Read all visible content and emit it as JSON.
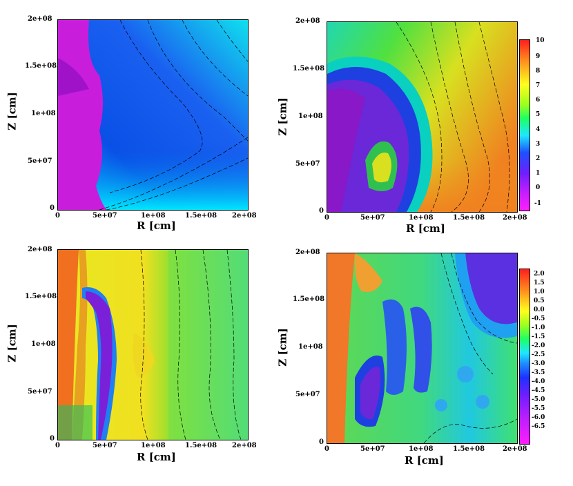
{
  "figure": {
    "panels": [
      {
        "id": "top-left",
        "ylabel": "Z [cm]",
        "xlabel": "R [cm]",
        "xticks": [
          "0",
          "5e+07",
          "1e+08",
          "1.5e+08",
          "2e+08"
        ],
        "yticks": [
          "0",
          "5e+07",
          "1e+08",
          "1.5e+08",
          "2e+08"
        ],
        "colorbar": null
      },
      {
        "id": "top-right",
        "ylabel": "Z [cm]",
        "xlabel": "R [cm]",
        "xticks": [
          "0",
          "5e+07",
          "1e+08",
          "1.5e+08",
          "2e+08"
        ],
        "yticks": [
          "0",
          "5e+07",
          "1e+08",
          "1.5e+08",
          "2e+08"
        ],
        "colorbar": {
          "labels": [
            "10",
            "9",
            "8",
            "7",
            "6",
            "5",
            "4",
            "3",
            "2",
            "1",
            "0",
            "-1"
          ]
        }
      },
      {
        "id": "bottom-left",
        "ylabel": "Z [cm]",
        "xlabel": "R [cm]",
        "xticks": [
          "0",
          "5e+07",
          "1e+08",
          "1.5e+08",
          "2e+08"
        ],
        "yticks": [
          "0",
          "5e+07",
          "1e+08",
          "1.5e+08",
          "2e+08"
        ],
        "colorbar": null
      },
      {
        "id": "bottom-right",
        "ylabel": "Z [cm]",
        "xlabel": "R [cm]",
        "xticks": [
          "0",
          "5e+07",
          "1e+08",
          "1.5e+08",
          "2e+08"
        ],
        "yticks": [
          "0",
          "5e+07",
          "1e+08",
          "1.5e+08",
          "2e+08"
        ],
        "colorbar": {
          "labels": [
            "2.0",
            "1.5",
            "1.0",
            "0.5",
            "0.0",
            "-0.5",
            "-1.0",
            "-1.5",
            "-2.0",
            "-2.5",
            "-3.0",
            "-3.5",
            "-4.0",
            "-4.5",
            "-5.0",
            "-5.5",
            "-6.0",
            "-6.5"
          ]
        }
      }
    ]
  },
  "chart_data": [
    {
      "type": "heatmap",
      "xlabel": "R [cm]",
      "ylabel": "Z [cm]",
      "xlim": [
        0,
        200000000
      ],
      "ylim": [
        0,
        200000000
      ],
      "x_ticks": [
        "0",
        "5e+07",
        "1e+08",
        "1.5e+08",
        "2e+08"
      ],
      "y_ticks": [
        "0",
        "5e+07",
        "1e+08",
        "1.5e+08",
        "2e+08"
      ],
      "colorscale": "magenta-blue-cyan-green-yellow-red",
      "contours": true
    },
    {
      "type": "heatmap",
      "xlabel": "R [cm]",
      "ylabel": "Z [cm]",
      "xlim": [
        0,
        200000000
      ],
      "ylim": [
        0,
        200000000
      ],
      "x_ticks": [
        "0",
        "5e+07",
        "1e+08",
        "1.5e+08",
        "2e+08"
      ],
      "y_ticks": [
        "0",
        "5e+07",
        "1e+08",
        "1.5e+08",
        "2e+08"
      ],
      "colorbar_range": [
        -1,
        10
      ],
      "colorbar_ticks": [
        10,
        9,
        8,
        7,
        6,
        5,
        4,
        3,
        2,
        1,
        0,
        -1
      ],
      "contours": true
    },
    {
      "type": "heatmap",
      "xlabel": "R [cm]",
      "ylabel": "Z [cm]",
      "xlim": [
        0,
        200000000
      ],
      "ylim": [
        0,
        200000000
      ],
      "x_ticks": [
        "0",
        "5e+07",
        "1e+08",
        "1.5e+08",
        "2e+08"
      ],
      "y_ticks": [
        "0",
        "5e+07",
        "1e+08",
        "1.5e+08",
        "2e+08"
      ],
      "contours": true
    },
    {
      "type": "heatmap",
      "xlabel": "R [cm]",
      "ylabel": "Z [cm]",
      "xlim": [
        0,
        200000000
      ],
      "ylim": [
        0,
        200000000
      ],
      "x_ticks": [
        "0",
        "5e+07",
        "1e+08",
        "1.5e+08",
        "2e+08"
      ],
      "y_ticks": [
        "0",
        "5e+07",
        "1e+08",
        "1.5e+08",
        "2e+08"
      ],
      "colorbar_range": [
        -6.5,
        2.0
      ],
      "colorbar_ticks": [
        2.0,
        1.5,
        1.0,
        0.5,
        0.0,
        -0.5,
        -1.0,
        -1.5,
        -2.0,
        -2.5,
        -3.0,
        -3.5,
        -4.0,
        -4.5,
        -5.0,
        -5.5,
        -6.0,
        -6.5
      ],
      "contours": true
    }
  ]
}
